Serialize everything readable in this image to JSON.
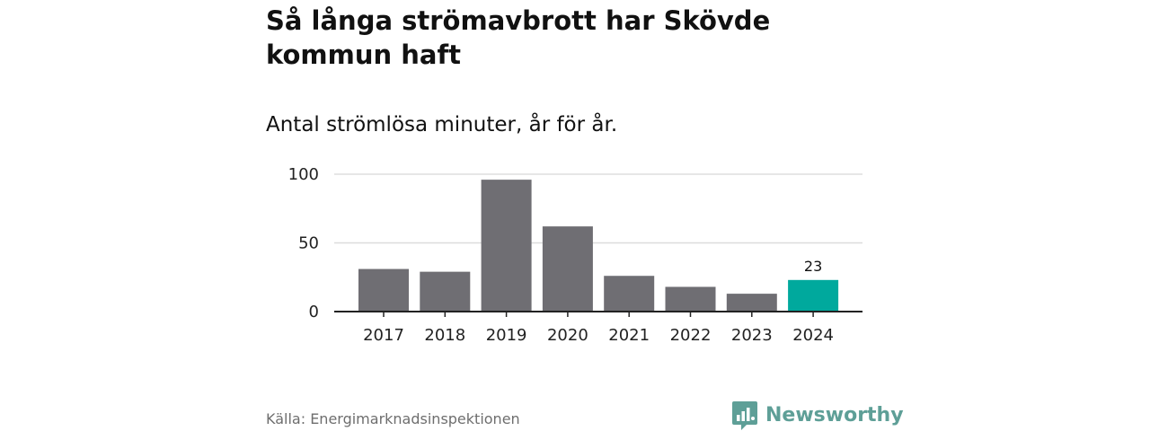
{
  "header": {
    "title": "Så långa strömavbrott har Skövde kommun haft",
    "subtitle": "Antal strömlösa minuter, år för år."
  },
  "footer": {
    "source": "Källa: Energimarknadsinspektionen",
    "brand": "Newsworthy",
    "brand_icon": "bar-chart-speech-bubble-icon"
  },
  "colors": {
    "bar": "#6f6e73",
    "highlight": "#00a99d",
    "grid": "#dddddd",
    "axis": "#222222",
    "brand": "#5e9f97"
  },
  "chart_data": {
    "type": "bar",
    "categories": [
      "2017",
      "2018",
      "2019",
      "2020",
      "2021",
      "2022",
      "2023",
      "2024"
    ],
    "values": [
      31,
      29,
      96,
      62,
      26,
      18,
      13,
      23
    ],
    "highlight_index": 7,
    "data_labels": [
      {
        "index": 7,
        "text": "23"
      }
    ],
    "ylim": [
      0,
      100
    ],
    "yticks": [
      0,
      50,
      100
    ],
    "grid": true,
    "title": "",
    "xlabel": "",
    "ylabel": ""
  }
}
